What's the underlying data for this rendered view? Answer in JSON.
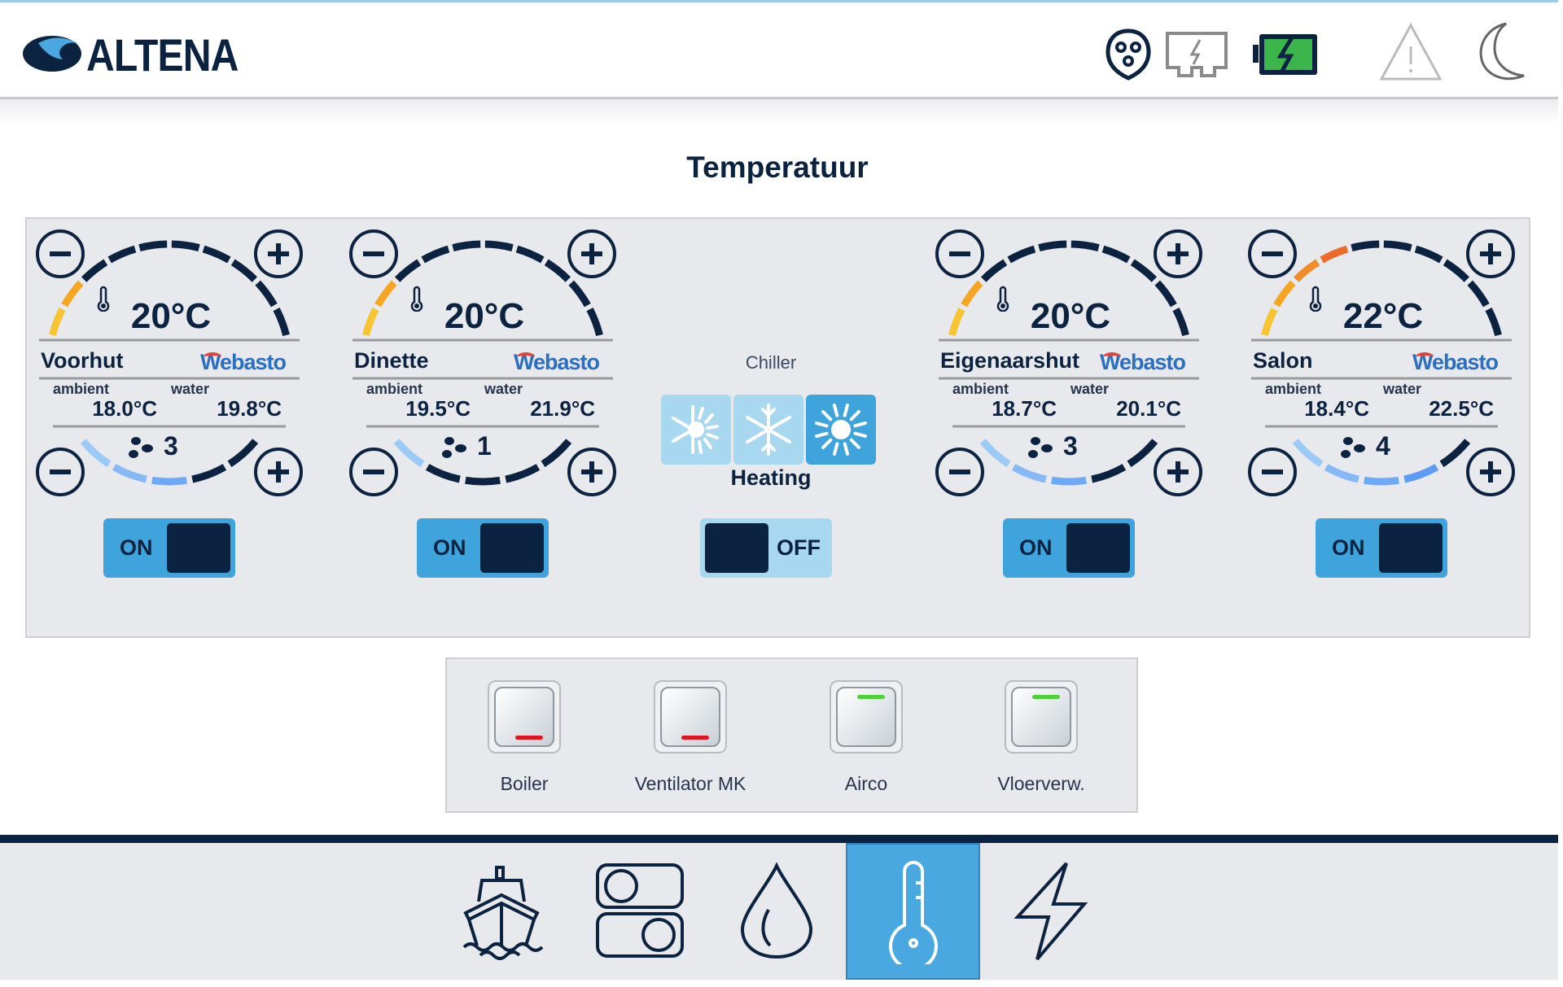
{
  "header": {
    "logo_text": "ALTENA",
    "icons": [
      "power-outlet-icon",
      "shore-power-icon",
      "battery-charging-icon",
      "warning-icon",
      "night-mode-icon"
    ],
    "battery_color": "#3cb54a"
  },
  "page_title": "Temperatuur",
  "heaters": [
    {
      "name": "Voorhut",
      "brand": "Webasto",
      "setpoint": "20°C",
      "setpoint_c": 20,
      "ambient_label": "ambient",
      "ambient": "18.0°C",
      "water_label": "water",
      "water": "19.8°C",
      "fan": "3",
      "fan_level": 3,
      "state": "ON"
    },
    {
      "name": "Dinette",
      "brand": "Webasto",
      "setpoint": "20°C",
      "setpoint_c": 20,
      "ambient_label": "ambient",
      "ambient": "19.5°C",
      "water_label": "water",
      "water": "21.9°C",
      "fan": "1",
      "fan_level": 1,
      "state": "ON"
    },
    {
      "name": "Eigenaarshut",
      "brand": "Webasto",
      "setpoint": "20°C",
      "setpoint_c": 20,
      "ambient_label": "ambient",
      "ambient": "18.7°C",
      "water_label": "water",
      "water": "20.1°C",
      "fan": "3",
      "fan_level": 3,
      "state": "ON"
    },
    {
      "name": "Salon",
      "brand": "Webasto",
      "setpoint": "22°C",
      "setpoint_c": 22,
      "ambient_label": "ambient",
      "ambient": "18.4°C",
      "water_label": "water",
      "water": "22.5°C",
      "fan": "4",
      "fan_level": 4,
      "state": "ON"
    }
  ],
  "chiller": {
    "label": "Chiller",
    "modes": [
      "auto",
      "cooling",
      "heating"
    ],
    "active_mode": "heating",
    "mode_label": "Heating",
    "state": "OFF"
  },
  "switches": [
    {
      "label": "Boiler",
      "state": "off"
    },
    {
      "label": "Ventilator MK",
      "state": "off"
    },
    {
      "label": "Airco",
      "state": "on"
    },
    {
      "label": "Vloerverw.",
      "state": "on"
    }
  ],
  "nav": [
    {
      "icon": "ship-icon",
      "active": false
    },
    {
      "icon": "switches-icon",
      "active": false
    },
    {
      "icon": "water-drop-icon",
      "active": false
    },
    {
      "icon": "thermometer-icon",
      "active": true
    },
    {
      "icon": "lightning-icon",
      "active": false
    }
  ],
  "colors": {
    "accent": "#4aa8e0",
    "navy": "#0b2240",
    "led_on": "#4cd137",
    "led_off": "#e0141e",
    "toggle_on": "#3fa4dc",
    "toggle_off": "#a8d8f0"
  }
}
